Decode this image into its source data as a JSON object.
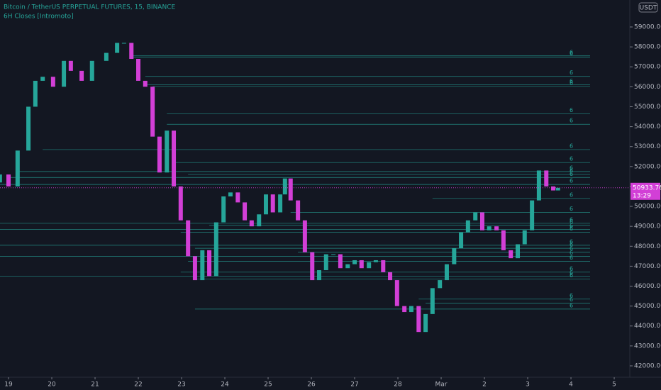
{
  "chart_data": {
    "type": "candlestick",
    "title": "Bitcoin / TetherUS PERPETUAL FUTURES, 15, BINANCE",
    "subtitle": "6H Closes [Intromoto]",
    "currency": "USDT",
    "up_color": "#26a69a",
    "down_color": "#d23fd6",
    "level_color": "#26a69a",
    "x": [
      -0.2,
      0,
      0.21,
      0.46,
      0.62,
      0.79,
      1.03,
      1.28,
      1.44,
      1.69,
      1.93,
      2.26,
      2.51,
      2.67,
      2.84,
      3.0,
      3.16,
      3.33,
      3.49,
      3.66,
      3.82,
      3.98,
      4.15,
      4.31,
      4.48,
      4.64,
      4.8,
      4.97,
      5.13,
      5.3,
      5.46,
      5.62,
      5.79,
      5.95,
      6.11,
      6.28,
      6.39,
      6.52,
      6.69,
      6.85,
      7.02,
      7.18,
      7.34,
      7.51,
      7.67,
      7.84,
      8.0,
      8.16,
      8.33,
      8.49,
      8.66,
      8.82,
      8.98,
      9.15,
      9.31,
      9.48,
      9.64,
      9.8,
      9.97,
      10.13,
      10.3,
      10.46,
      10.62,
      10.79,
      10.95,
      11.11,
      11.28,
      11.44,
      11.61,
      11.77,
      11.93,
      12.1,
      12.26,
      12.43,
      12.59,
      12.7
    ],
    "open": [
      51200,
      51600,
      51000,
      52800,
      55000,
      56300,
      56500,
      56000,
      57300,
      56800,
      56300,
      57300,
      57700,
      58200,
      58200,
      57400,
      56300,
      56000,
      53500,
      51700,
      53800,
      51000,
      49300,
      47500,
      46300,
      47800,
      46500,
      49200,
      50500,
      50700,
      50200,
      49300,
      49000,
      49600,
      50600,
      49700,
      50600,
      51400,
      50300,
      49300,
      47700,
      46300,
      46800,
      47600,
      47600,
      46900,
      47100,
      47300,
      46900,
      47200,
      47300,
      46700,
      46300,
      45000,
      44700,
      45000,
      43700,
      44600,
      45900,
      46300,
      47100,
      47900,
      48700,
      49300,
      49700,
      48800,
      49000,
      48800,
      47800,
      47400,
      48100,
      48800,
      50300,
      51800,
      51000,
      50800
    ],
    "close": [
      51600,
      51000,
      52800,
      55000,
      56300,
      56500,
      56000,
      57300,
      56800,
      56300,
      57300,
      57700,
      58200,
      58200,
      57400,
      56300,
      56000,
      53500,
      51700,
      53800,
      51000,
      49300,
      47500,
      46300,
      47800,
      46500,
      49200,
      50500,
      50700,
      50200,
      49300,
      49000,
      49600,
      50600,
      49700,
      50600,
      51400,
      50300,
      49300,
      47700,
      46300,
      46800,
      47600,
      47600,
      46900,
      47100,
      47300,
      46900,
      47200,
      47300,
      46700,
      46300,
      45000,
      44700,
      45000,
      43700,
      44600,
      45900,
      46300,
      47100,
      47900,
      48700,
      49300,
      49700,
      48800,
      49000,
      48800,
      47800,
      47400,
      48100,
      48800,
      50300,
      51800,
      51000,
      50800,
      50933.76
    ],
    "last_price": {
      "value": 50933.76,
      "label": "50933.76"
    },
    "countdown": "13:29",
    "level_label": "6",
    "levels": [
      57550,
      57480,
      56520,
      56100,
      56020,
      54650,
      54120,
      52850,
      52200,
      51750,
      51600,
      51450,
      51100,
      50400,
      49700,
      49150,
      49050,
      48850,
      48700,
      48050,
      47900,
      47700,
      47500,
      47250,
      46700,
      46500,
      46350,
      45350,
      45150,
      44850
    ],
    "level_start": [
      2.84,
      2.84,
      3.16,
      3.16,
      3.33,
      3.66,
      3.66,
      0.79,
      3.82,
      0.21,
      4.15,
      0,
      -0.2,
      9.8,
      6.52,
      -0.2,
      4.64,
      -0.2,
      3.98,
      -0.2,
      4.31,
      6.69,
      -0.2,
      4.15,
      3.98,
      -0.2,
      4.31,
      9.48,
      9.64,
      4.31
    ],
    "xlim": [
      -0.197,
      14.36
    ],
    "ylim": [
      41430,
      60352
    ],
    "xticks": [
      {
        "value": 0,
        "label": "19"
      },
      {
        "value": 1,
        "label": "20"
      },
      {
        "value": 2,
        "label": "21"
      },
      {
        "value": 3,
        "label": "22"
      },
      {
        "value": 4,
        "label": "23"
      },
      {
        "value": 5,
        "label": "24"
      },
      {
        "value": 6,
        "label": "25"
      },
      {
        "value": 7,
        "label": "26"
      },
      {
        "value": 8,
        "label": "27"
      },
      {
        "value": 9,
        "label": "28"
      },
      {
        "value": 10,
        "label": "Mar"
      },
      {
        "value": 11,
        "label": "2"
      },
      {
        "value": 12,
        "label": "3"
      },
      {
        "value": 13,
        "label": "4"
      },
      {
        "value": 14,
        "label": "5"
      }
    ],
    "yticks": [
      {
        "value": 42000,
        "label": "42000.00"
      },
      {
        "value": 43000,
        "label": "43000.00"
      },
      {
        "value": 44000,
        "label": "44000.00"
      },
      {
        "value": 45000,
        "label": "45000.00"
      },
      {
        "value": 46000,
        "label": "46000.00"
      },
      {
        "value": 47000,
        "label": "47000.00"
      },
      {
        "value": 48000,
        "label": "48000.00"
      },
      {
        "value": 49000,
        "label": "49000.00"
      },
      {
        "value": 50000,
        "label": "50000.00"
      },
      {
        "value": 51000,
        "label": "51000.00"
      },
      {
        "value": 52000,
        "label": "52000.00"
      },
      {
        "value": 53000,
        "label": "53000.00"
      },
      {
        "value": 54000,
        "label": "54000.00"
      },
      {
        "value": 55000,
        "label": "55000.00"
      },
      {
        "value": 56000,
        "label": "56000.00"
      },
      {
        "value": 57000,
        "label": "57000.00"
      },
      {
        "value": 58000,
        "label": "58000.00"
      },
      {
        "value": 59000,
        "label": "59000.00"
      }
    ]
  }
}
